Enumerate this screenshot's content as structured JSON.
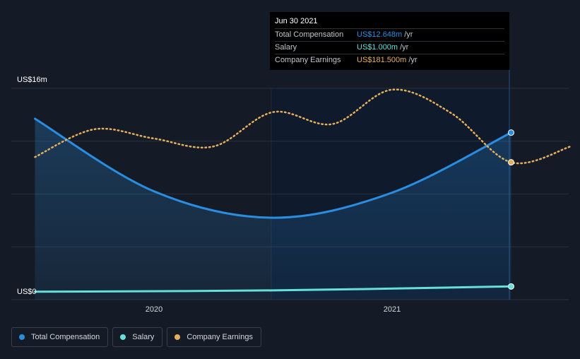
{
  "chart_data": {
    "type": "line",
    "y_axis": {
      "top_label": "US$16m",
      "bottom_label": "US$0",
      "min": 0,
      "max": 16
    },
    "x_ticks": [
      "2020",
      "2021"
    ],
    "series": [
      {
        "name": "Total Compensation",
        "color": "#2a8ddf",
        "area": true,
        "points": [
          {
            "x": 2019.5,
            "y": 13.7
          },
          {
            "x": 2020.0,
            "y": 8.2
          },
          {
            "x": 2020.5,
            "y": 6.2
          },
          {
            "x": 2021.0,
            "y": 8.1
          },
          {
            "x": 2021.5,
            "y": 12.648
          }
        ]
      },
      {
        "name": "Salary",
        "color": "#65dfd8",
        "area": false,
        "points": [
          {
            "x": 2019.5,
            "y": 0.6
          },
          {
            "x": 2020.5,
            "y": 0.7
          },
          {
            "x": 2021.5,
            "y": 1.0
          }
        ]
      },
      {
        "name": "Company Earnings",
        "color": "#e5b05c",
        "dashed": true,
        "points": [
          {
            "x": 2019.5,
            "y": 10.8
          },
          {
            "x": 2019.75,
            "y": 12.9
          },
          {
            "x": 2020.0,
            "y": 12.2
          },
          {
            "x": 2020.25,
            "y": 11.6
          },
          {
            "x": 2020.5,
            "y": 14.2
          },
          {
            "x": 2020.75,
            "y": 13.3
          },
          {
            "x": 2021.0,
            "y": 15.9
          },
          {
            "x": 2021.25,
            "y": 14.1
          },
          {
            "x": 2021.5,
            "y": 10.4
          },
          {
            "x": 2021.75,
            "y": 11.6
          }
        ]
      }
    ]
  },
  "tooltip": {
    "date": "Jun 30 2021",
    "unit": "/yr",
    "rows": [
      {
        "label": "Total Compensation",
        "value": "US$12.648m",
        "color": "#2a8ddf"
      },
      {
        "label": "Salary",
        "value": "US$1.000m",
        "color": "#65dfd8"
      },
      {
        "label": "Company Earnings",
        "value": "US$181.500m",
        "color": "#e5b05c"
      }
    ]
  },
  "legend": [
    {
      "label": "Total Compensation",
      "color": "#2a8ddf"
    },
    {
      "label": "Salary",
      "color": "#65dfd8"
    },
    {
      "label": "Company Earnings",
      "color": "#e5b05c"
    }
  ]
}
